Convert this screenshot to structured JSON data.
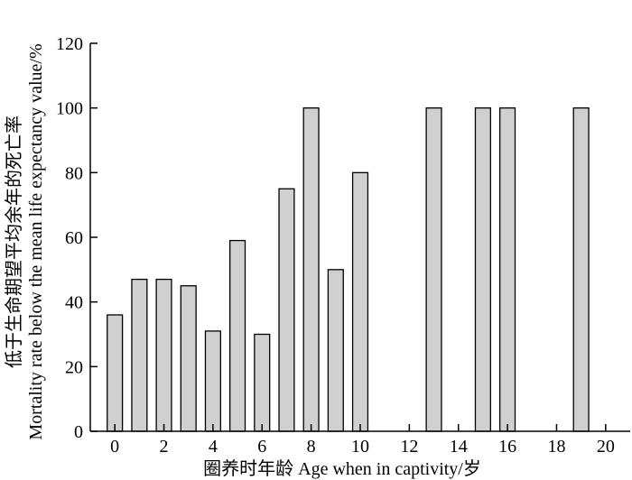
{
  "chart_data": {
    "type": "bar",
    "xlabel": "圈养时年龄 Age when in captivity/岁",
    "ylabel_line1": "低于生命期望平均余年的死亡率",
    "ylabel_line2": "Mortality rate below the mean life expectancy value/%",
    "xlim": [
      -1,
      21
    ],
    "ylim": [
      0,
      120
    ],
    "xticks": [
      0,
      2,
      4,
      6,
      8,
      10,
      12,
      14,
      16,
      18,
      20
    ],
    "yticks": [
      0,
      20,
      40,
      60,
      80,
      100,
      120
    ],
    "x": [
      0,
      1,
      2,
      3,
      4,
      5,
      6,
      7,
      8,
      9,
      10,
      13,
      15,
      16,
      19
    ],
    "values": [
      36,
      47,
      47,
      45,
      31,
      59,
      30,
      75,
      100,
      50,
      80,
      100,
      100,
      100,
      100
    ],
    "grid": false
  }
}
